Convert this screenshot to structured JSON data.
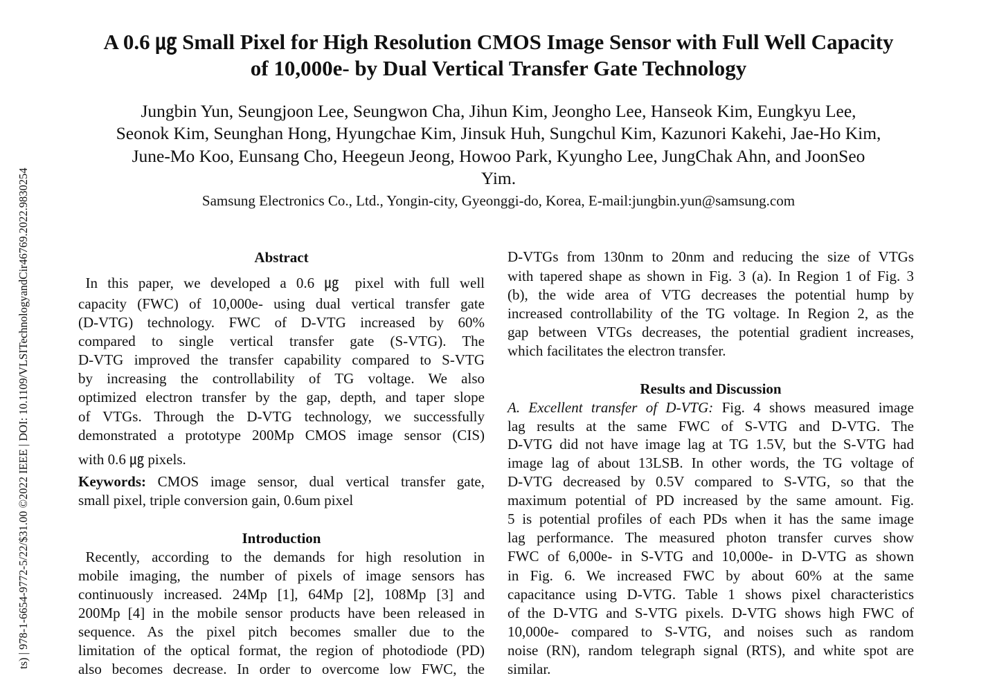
{
  "sidebar_text": "ts) | 978-1-6654-9772-5/22/$31.00 ©2022 IEEE | DOI: 10.1109/VLSITechnologyandCir46769.2022.9830254",
  "title": [
    "A 0.6 ㎍ Small Pixel for High Resolution CMOS Image Sensor with Full Well Capacity",
    "of 10,000e- by Dual Vertical Transfer Gate Technology"
  ],
  "authors": [
    "Jungbin Yun, Seungjoon Lee, Seungwon Cha, Jihun Kim, Jeongho Lee, Hanseok Kim, Eungkyu Lee,",
    "Seonok Kim, Seunghan Hong, Hyungchae Kim, Jinsuk Huh, Sungchul Kim, Kazunori Kakehi, Jae-Ho Kim,",
    "June-Mo Koo, Eunsang Cho, Heegeun Jeong, Howoo Park, Kyungho Lee, JungChak Ahn, and JoonSeo",
    "Yim."
  ],
  "affiliation": "Samsung Electronics Co., Ltd., Yongin-city, Gyeonggi-do, Korea, E-mail:jungbin.yun@samsung.com",
  "left_column": [
    {
      "type": "head",
      "text": "Abstract"
    },
    {
      "text": " In this paper, we developed a 0.6 ㎍ pixel with full well"
    },
    {
      "text": "capacity (FWC) of 10,000e- using dual vertical transfer gate"
    },
    {
      "text": "(D-VTG) technology. FWC of D-VTG increased by 60%"
    },
    {
      "text": "compared to single vertical transfer gate (S-VTG). The"
    },
    {
      "text": "D-VTG improved the transfer capability compared to S-VTG"
    },
    {
      "text": "by increasing the controllability of TG voltage. We also"
    },
    {
      "text": "optimized electron transfer by the gap, depth, and taper slope"
    },
    {
      "text": "of VTGs. Through the D-VTG technology, we successfully"
    },
    {
      "text": "demonstrated a prototype 200Mp CMOS image sensor (CIS)"
    },
    {
      "text": "with 0.6 ㎍ pixels.",
      "last": true
    },
    {
      "lead": "Keywords:",
      "text": " CMOS image sensor, dual vertical transfer gate,"
    },
    {
      "text": "small pixel, triple conversion gain, 0.6um pixel",
      "last": true
    },
    {
      "type": "head",
      "text": "Introduction"
    },
    {
      "text": " Recently, according to the demands for high resolution in"
    },
    {
      "text": "mobile imaging, the number of pixels of image sensors has"
    },
    {
      "text": "continuously increased. 24Mp [1], 64Mp [2], 108Mp [3] and"
    },
    {
      "text": "200Mp [4] in the mobile sensor products have been released in"
    },
    {
      "text": "sequence. As the pixel pitch becomes smaller due to the"
    },
    {
      "text": "limitation of the optical format, the region of photodiode (PD)"
    },
    {
      "text": "also becomes decrease. In order to overcome low FWC, the"
    }
  ],
  "right_column": [
    {
      "text": "D-VTGs from 130nm to 20nm and reducing the size of VTGs"
    },
    {
      "text": "with tapered shape as shown in Fig. 3 (a). In Region 1 of Fig. 3"
    },
    {
      "text": "(b), the wide area of VTG decreases the potential hump by"
    },
    {
      "text": "increased controllability of the TG voltage. In Region 2, as the"
    },
    {
      "text": "gap between VTGs decreases, the potential gradient increases,"
    },
    {
      "text": "which facilitates the electron transfer.",
      "last": true
    },
    {
      "type": "head",
      "text": "Results and Discussion"
    },
    {
      "italic": "A. Excellent transfer of D-VTG:",
      "text": " Fig. 4 shows measured image"
    },
    {
      "text": "lag results at the same FWC of S-VTG and D-VTG. The"
    },
    {
      "text": "D-VTG did not have image lag at TG 1.5V, but the S-VTG had"
    },
    {
      "text": "image lag of about 13LSB. In other words, the TG voltage of"
    },
    {
      "text": "D-VTG decreased by 0.5V compared to S-VTG, so that the"
    },
    {
      "text": "maximum potential of PD increased by the same amount. Fig."
    },
    {
      "text": "5 is potential profiles of each PDs when it has the same image"
    },
    {
      "text": "lag performance. The measured photon transfer curves show"
    },
    {
      "text": "FWC of 6,000e- in S-VTG and 10,000e- in D-VTG as shown"
    },
    {
      "text": "in Fig. 6. We increased FWC by about 60% at the same"
    },
    {
      "text": "capacitance using D-VTG. Table 1 shows pixel characteristics"
    },
    {
      "text": "of the D-VTG and S-VTG pixels. D-VTG shows high FWC of"
    },
    {
      "text": "10,000e- compared to S-VTG, and noises such as random"
    },
    {
      "text": "noise (RN), random telegraph signal (RTS), and white spot are"
    },
    {
      "text": "similar.",
      "last": true
    }
  ]
}
